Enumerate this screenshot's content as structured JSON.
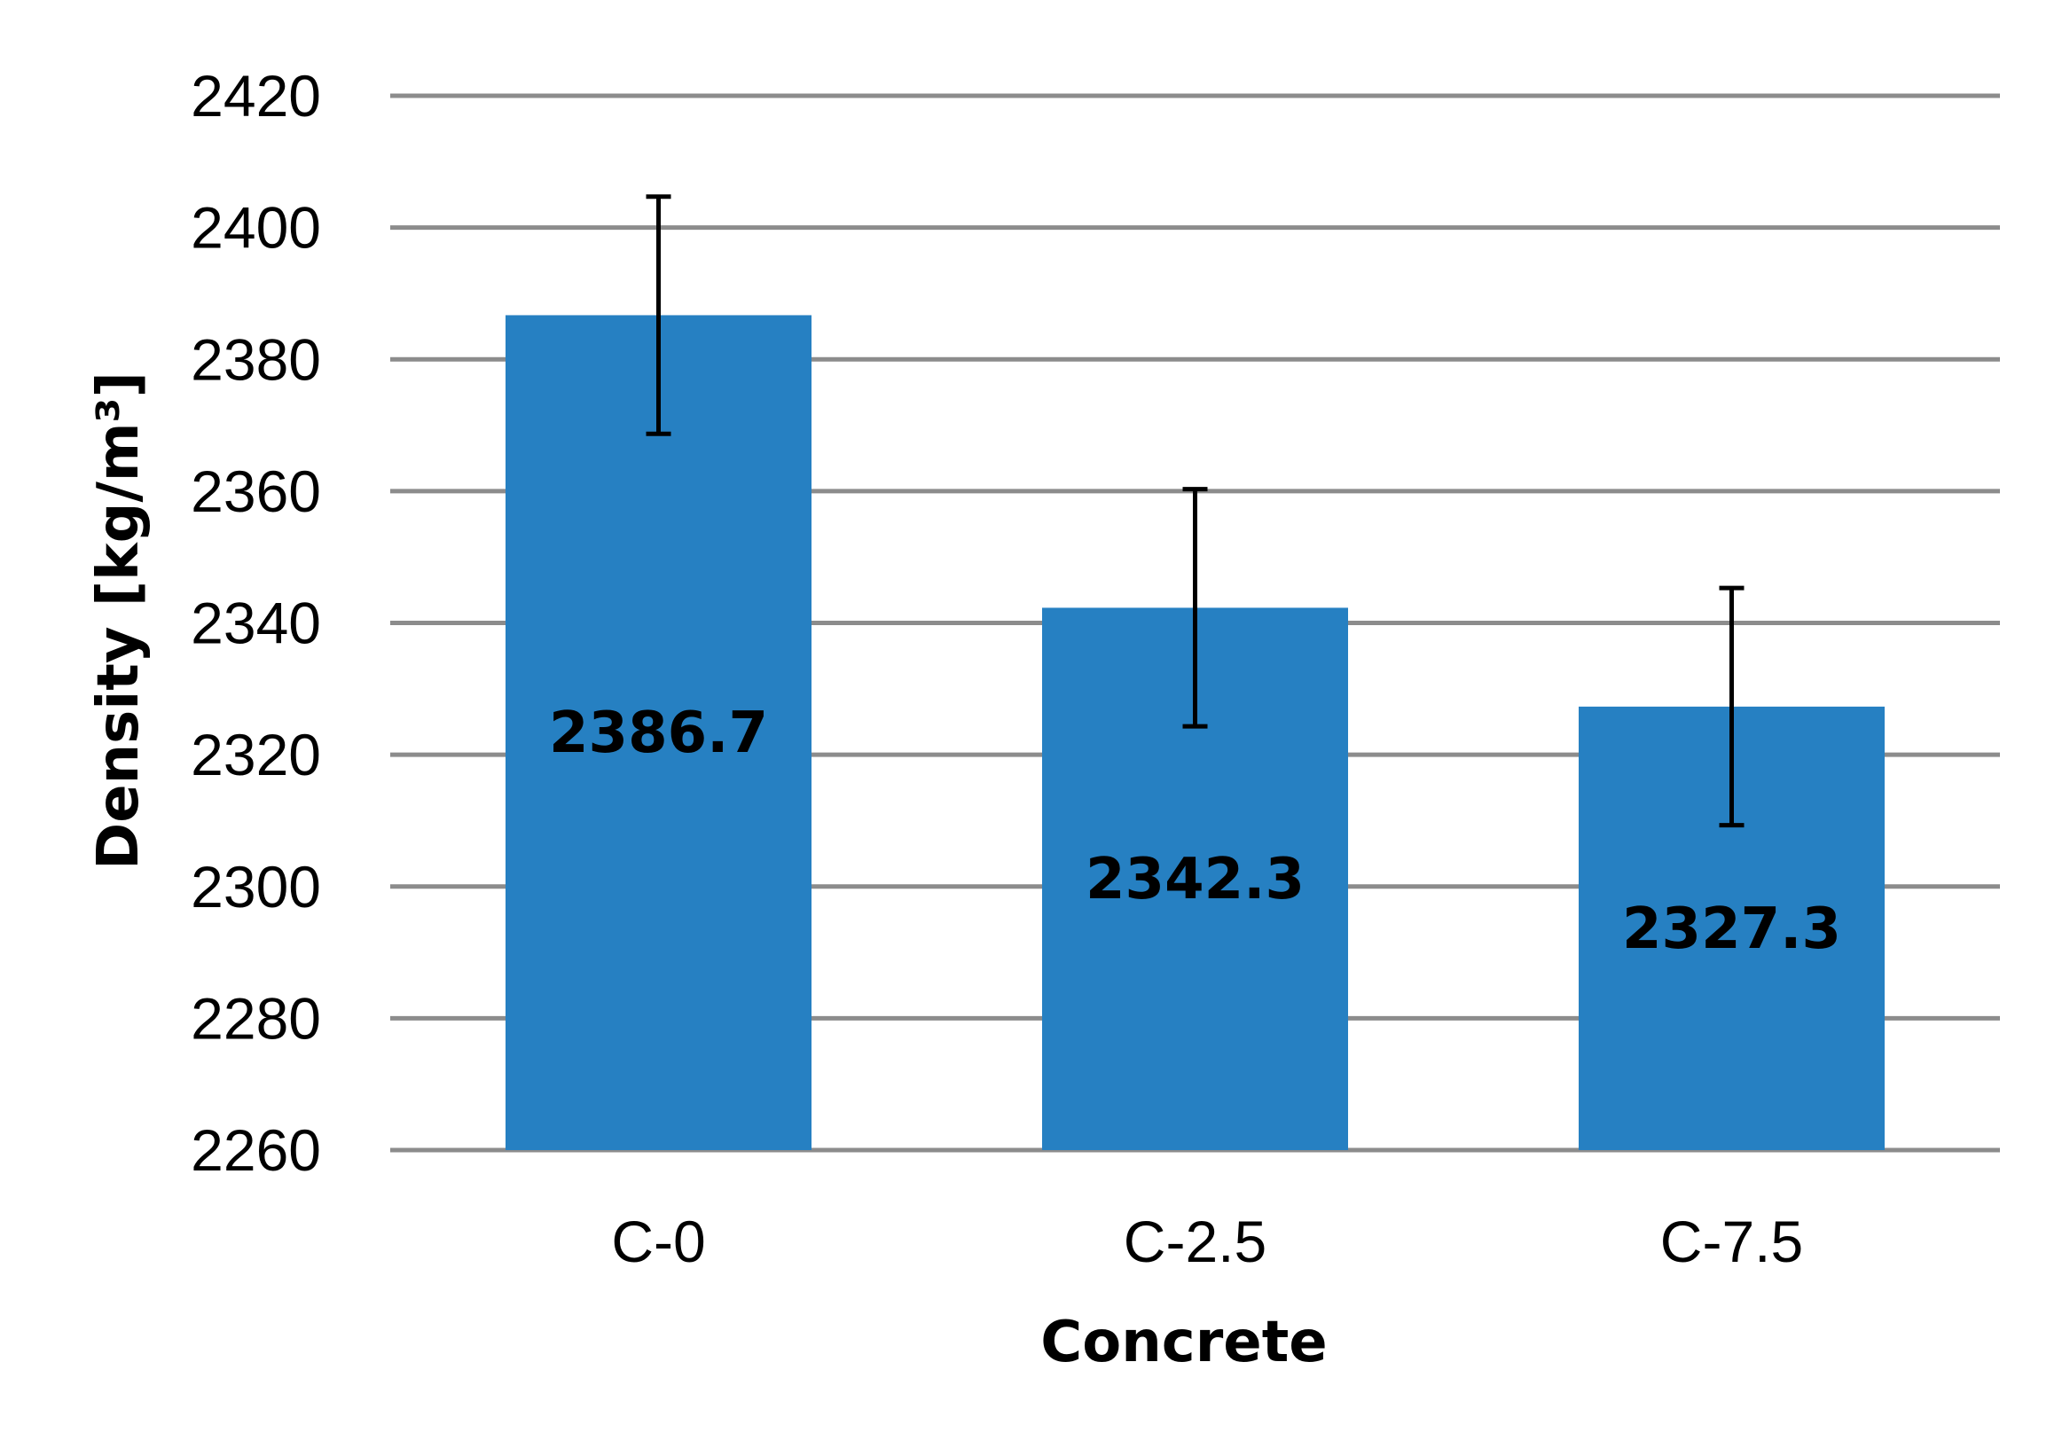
{
  "chart_data": {
    "type": "bar",
    "categories": [
      "C-0",
      "C-2.5",
      "C-7.5"
    ],
    "values": [
      2386.7,
      2342.3,
      2327.3
    ],
    "error_high": [
      2404.7,
      2360.3,
      2345.3
    ],
    "error_low": [
      2368.7,
      2324.3,
      2309.3
    ],
    "data_labels": [
      "2386.7",
      "2342.3",
      "2327.3"
    ],
    "y_ticks": [
      2260,
      2280,
      2300,
      2320,
      2340,
      2360,
      2380,
      2400,
      2420
    ],
    "ylim": [
      2260,
      2420
    ],
    "title": "",
    "xlabel": "Concrete",
    "ylabel": "Density [kg/m³]",
    "grid": true,
    "legend": "none",
    "colors": {
      "bar": "#2680C2",
      "grid": "#8C8C8C",
      "error_bar": "#000000",
      "text": "#000000"
    }
  }
}
